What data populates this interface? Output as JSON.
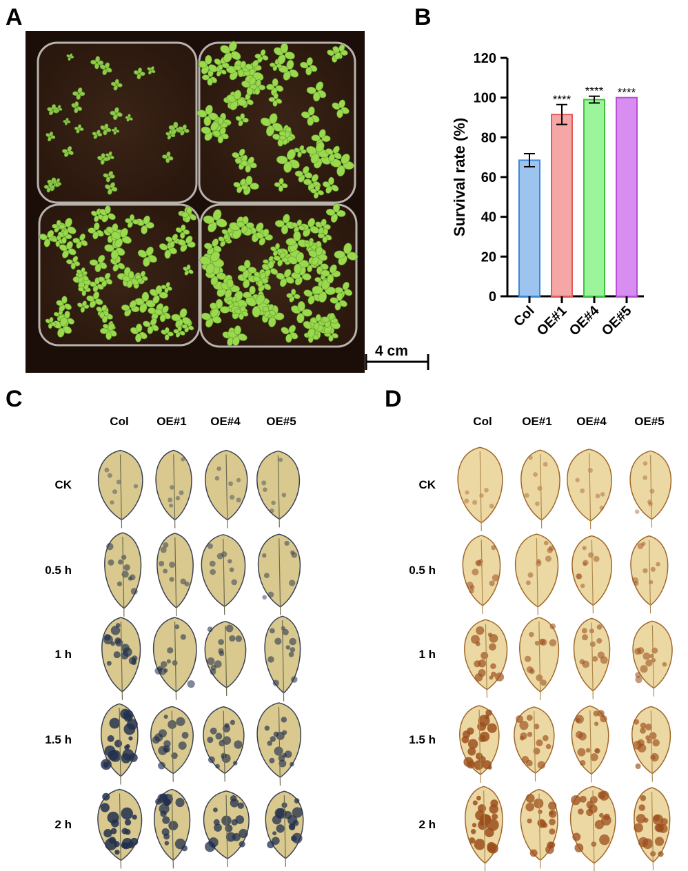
{
  "panels": {
    "a": "A",
    "b": "B",
    "c": "C",
    "d": "D"
  },
  "scale_bar": {
    "label": "4 cm"
  },
  "chart_data": {
    "type": "bar",
    "categories": [
      "Col",
      "OE#1",
      "OE#4",
      "OE#5"
    ],
    "values": [
      68.5,
      91.5,
      99,
      100
    ],
    "errors": [
      3.3,
      5,
      1.7,
      0
    ],
    "significance": [
      "",
      "****",
      "****",
      "****"
    ],
    "colors": [
      "#9dc3ef",
      "#f5a6a6",
      "#9cf59a",
      "#d78ef0"
    ],
    "edge_colors": [
      "#3d87d6",
      "#e25a5a",
      "#3fc23d",
      "#b84fd6"
    ],
    "ylabel": "Survival rate (%)",
    "ylim": [
      0,
      120
    ],
    "yticks": [
      0,
      20,
      40,
      60,
      80,
      100,
      120
    ]
  },
  "stain_grid_c": {
    "columns": [
      "Col",
      "OE#1",
      "OE#4",
      "OE#5"
    ],
    "rows": [
      "CK",
      "0.5 h",
      "1 h",
      "1.5 h",
      "2 h"
    ]
  },
  "stain_grid_d": {
    "columns": [
      "Col",
      "OE#1",
      "OE#4",
      "OE#5"
    ],
    "rows": [
      "CK",
      "0.5 h",
      "1 h",
      "1.5 h",
      "2 h"
    ]
  }
}
